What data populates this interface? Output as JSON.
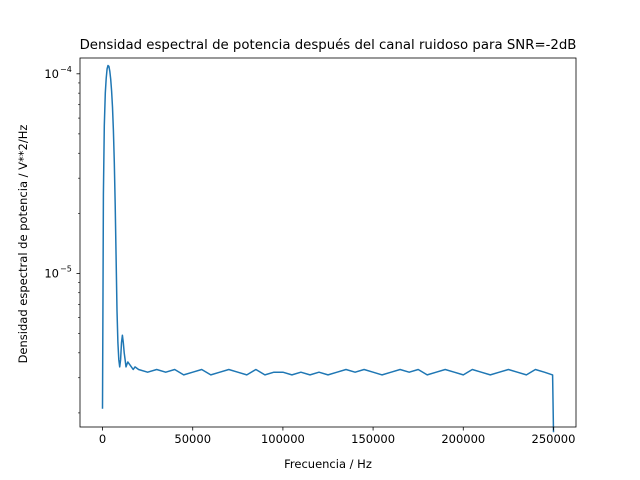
{
  "chart_data": {
    "type": "line",
    "title": "Densidad espectral de potencia después del canal ruidoso para SNR=-2dB",
    "xlabel": "Frecuencia / Hz",
    "ylabel": "Densidad espectral de potencia / V**2/Hz",
    "xlim": [
      -12500,
      262500
    ],
    "ylim": [
      1.7e-06,
      0.00012
    ],
    "yscale": "log",
    "grid": false,
    "x_ticks": [
      {
        "value": 0,
        "label": "0"
      },
      {
        "value": 50000,
        "label": "50000"
      },
      {
        "value": 100000,
        "label": "100000"
      },
      {
        "value": 150000,
        "label": "150000"
      },
      {
        "value": 200000,
        "label": "200000"
      },
      {
        "value": 250000,
        "label": "250000"
      }
    ],
    "y_ticks": [
      {
        "value": 1e-05,
        "base": "10",
        "exp": "−5"
      },
      {
        "value": 0.0001,
        "base": "10",
        "exp": "−4"
      }
    ],
    "series": [
      {
        "color": "#1f77b4",
        "x": [
          0,
          250,
          500,
          1000,
          1500,
          2000,
          2500,
          3000,
          3500,
          4000,
          4500,
          5000,
          5500,
          6000,
          6500,
          7000,
          7500,
          8000,
          8500,
          9000,
          9500,
          10000,
          10500,
          11000,
          11500,
          12000,
          12500,
          13000,
          13500,
          14000,
          15000,
          16000,
          17000,
          18000,
          20000,
          25000,
          30000,
          35000,
          40000,
          45000,
          50000,
          55000,
          60000,
          65000,
          70000,
          75000,
          80000,
          85000,
          90000,
          95000,
          100000,
          105000,
          110000,
          115000,
          120000,
          125000,
          130000,
          135000,
          140000,
          145000,
          150000,
          155000,
          160000,
          165000,
          170000,
          175000,
          180000,
          185000,
          190000,
          195000,
          200000,
          205000,
          210000,
          215000,
          220000,
          225000,
          230000,
          235000,
          240000,
          245000,
          249500,
          250000
        ],
        "y": [
          2.1e-06,
          8e-06,
          2.5e-05,
          5.5e-05,
          8e-05,
          9.5e-05,
          0.000106,
          0.00011,
          0.000109,
          0.000103,
          9.4e-05,
          8.2e-05,
          6.8e-05,
          5.2e-05,
          3.6e-05,
          2.2e-05,
          1.2e-05,
          6.5e-06,
          4.5e-06,
          3.7e-06,
          3.4e-06,
          3.7e-06,
          4.5e-06,
          4.9e-06,
          4.5e-06,
          4e-06,
          3.7e-06,
          3.4e-06,
          3.5e-06,
          3.6e-06,
          3.5e-06,
          3.4e-06,
          3.3e-06,
          3.4e-06,
          3.3e-06,
          3.2e-06,
          3.3e-06,
          3.2e-06,
          3.3e-06,
          3.1e-06,
          3.2e-06,
          3.3e-06,
          3.1e-06,
          3.2e-06,
          3.3e-06,
          3.2e-06,
          3.1e-06,
          3.3e-06,
          3.1e-06,
          3.2e-06,
          3.2e-06,
          3.1e-06,
          3.2e-06,
          3.1e-06,
          3.2e-06,
          3.1e-06,
          3.2e-06,
          3.3e-06,
          3.2e-06,
          3.3e-06,
          3.2e-06,
          3.1e-06,
          3.2e-06,
          3.3e-06,
          3.2e-06,
          3.3e-06,
          3.1e-06,
          3.2e-06,
          3.3e-06,
          3.2e-06,
          3.1e-06,
          3.3e-06,
          3.2e-06,
          3.1e-06,
          3.2e-06,
          3.3e-06,
          3.2e-06,
          3.1e-06,
          3.3e-06,
          3.2e-06,
          3.1e-06,
          1.6e-06
        ]
      }
    ]
  }
}
